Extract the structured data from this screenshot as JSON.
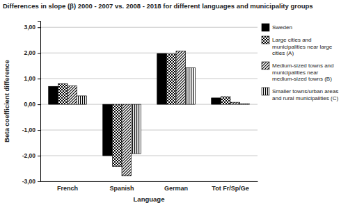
{
  "chart_data": {
    "type": "bar",
    "title": "Differences in slope (β) 2000 - 2007 vs. 2008 - 2018 for different languages and municipality groups",
    "x_label": "Language",
    "y_label": "Beta coefficient difference",
    "categories": [
      "French",
      "Spanish",
      "German",
      "Tot Fr/Sp/Ge"
    ],
    "series": [
      {
        "name": "Sweden",
        "color": "#000000",
        "values": [
          0.7,
          -2.0,
          1.98,
          0.25
        ]
      },
      {
        "name": "Large cities and municipalities near large cities (A)",
        "color": "#000000",
        "values": [
          0.8,
          -2.42,
          1.97,
          0.3
        ]
      },
      {
        "name": "Medium-sized towns and municipalities near medium-sized towns (B)",
        "color": "#000000",
        "values": [
          0.72,
          -2.78,
          2.08,
          0.08
        ]
      },
      {
        "name": "Smaller towns/urban areas and rural municipalities (C)",
        "color": "#000000",
        "values": [
          0.33,
          -1.92,
          1.42,
          0.02
        ]
      }
    ],
    "ylim": [
      -3,
      3.25
    ],
    "yticks": [
      {
        "value": -3,
        "label": "-3,00"
      },
      {
        "value": -2,
        "label": "-2,00"
      },
      {
        "value": -1,
        "label": "-1,00"
      },
      {
        "value": 0,
        "label": "0,00"
      },
      {
        "value": 1,
        "label": "1,00"
      },
      {
        "value": 2,
        "label": "2,00"
      },
      {
        "value": 3,
        "label": "3,00"
      }
    ],
    "grid": true,
    "legend": "right"
  }
}
